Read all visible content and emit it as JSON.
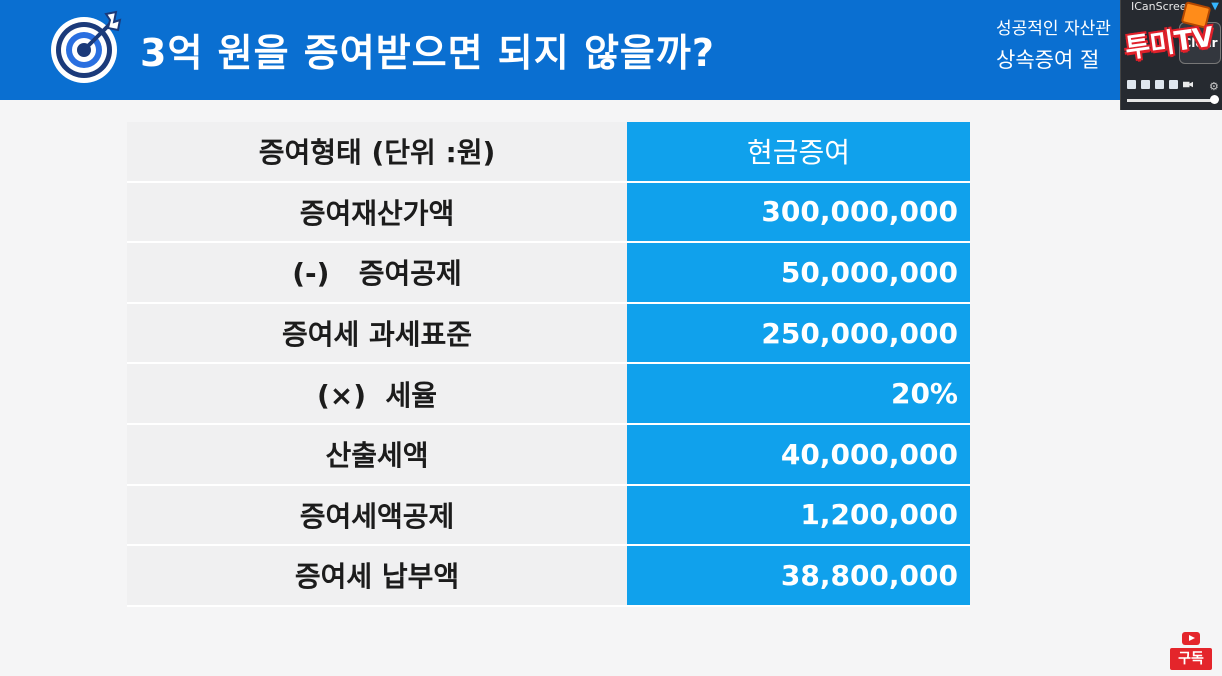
{
  "header": {
    "title": "3억 원을 증여받으면 되지 않을까?",
    "subtitle_line1": "성공적인 자산관",
    "subtitle_line2": "상속증여 절",
    "icon": "target-arrow-icon",
    "bg_color": "#0a6fd1"
  },
  "recorder": {
    "title": "ICanScree",
    "brand": "투미TV",
    "clear_label": "Clear"
  },
  "table": {
    "header": {
      "label": "증여형태 (단위 :원)",
      "value": "현금증여"
    },
    "rows": [
      {
        "label": "증여재산가액",
        "value": "300,000,000"
      },
      {
        "label": "(-)   증여공제",
        "value": "50,000,000"
      },
      {
        "label": "증여세 과세표준",
        "value": "250,000,000"
      },
      {
        "label": "(×)  세율",
        "value": "20%"
      },
      {
        "label": "산출세액",
        "value": "40,000,000"
      },
      {
        "label": "증여세액공제",
        "value": "1,200,000"
      },
      {
        "label": "증여세 납부액",
        "value": "38,800,000"
      }
    ],
    "value_color": "#10a1ec"
  },
  "subscribe": {
    "label": "구독",
    "icon": "youtube-play-icon"
  }
}
